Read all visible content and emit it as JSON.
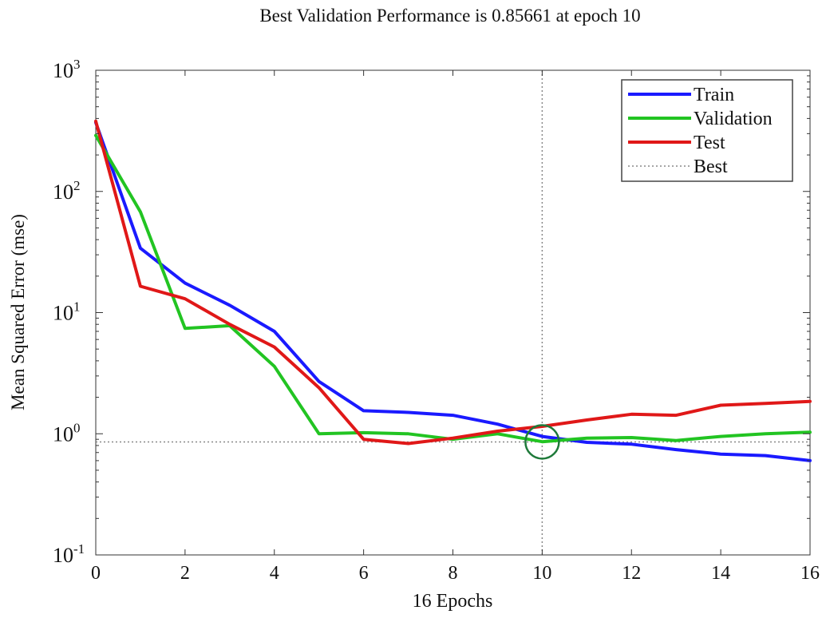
{
  "chart_data": {
    "type": "line",
    "title": "Best Validation Performance is 0.85661 at epoch 10",
    "xlabel": "16 Epochs",
    "ylabel": "Mean Squared Error (mse)",
    "xlim": [
      0,
      16
    ],
    "ylim": [
      0.1,
      1000
    ],
    "yscale": "log",
    "x_ticks": [
      0,
      2,
      4,
      6,
      8,
      10,
      12,
      14,
      16
    ],
    "x_tick_labels": [
      "0",
      "2",
      "4",
      "6",
      "8",
      "10",
      "12",
      "14",
      "16"
    ],
    "y_ticks": [
      {
        "value": 0.1,
        "base": "10",
        "exp": "-1"
      },
      {
        "value": 1,
        "base": "10",
        "exp": "0"
      },
      {
        "value": 10,
        "base": "10",
        "exp": "1"
      },
      {
        "value": 100,
        "base": "10",
        "exp": "2"
      },
      {
        "value": 1000,
        "base": "10",
        "exp": "3"
      }
    ],
    "x": [
      0,
      1,
      2,
      3,
      4,
      5,
      6,
      7,
      8,
      9,
      10,
      11,
      12,
      13,
      14,
      15,
      16
    ],
    "series": [
      {
        "name": "Train",
        "color": "#1a1aff",
        "values": [
          370,
          34,
          17.5,
          11.5,
          7,
          2.7,
          1.55,
          1.5,
          1.42,
          1.2,
          0.95,
          0.85,
          0.82,
          0.74,
          0.68,
          0.66,
          0.6
        ]
      },
      {
        "name": "Validation",
        "color": "#22c422",
        "values": [
          290,
          68,
          7.4,
          7.8,
          3.6,
          1.0,
          1.02,
          1.0,
          0.9,
          1.0,
          0.86,
          0.92,
          0.93,
          0.88,
          0.95,
          1.0,
          1.03
        ]
      },
      {
        "name": "Test",
        "color": "#e01818",
        "values": [
          380,
          16.5,
          13,
          8,
          5.2,
          2.4,
          0.9,
          0.83,
          0.92,
          1.05,
          1.15,
          1.3,
          1.45,
          1.42,
          1.72,
          1.78,
          1.85
        ]
      }
    ],
    "best": {
      "name": "Best",
      "epoch": 10,
      "value": 0.85661,
      "color": "#888888",
      "marker_color": "#1f7a3a"
    },
    "legend_position": "top-right",
    "grid": false
  }
}
